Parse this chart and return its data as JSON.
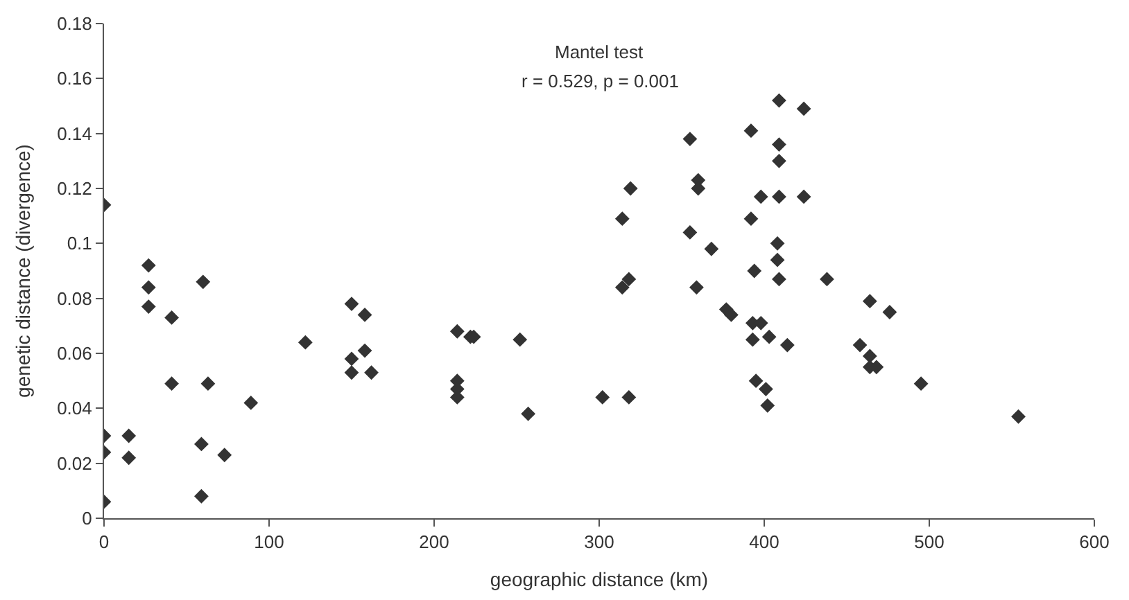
{
  "chart_data": {
    "type": "scatter",
    "xlabel": "geographic distance (km)",
    "ylabel": "genetic distance (divergence)",
    "annotations": [
      "Mantel test",
      "r = 0.529, p = 0.001"
    ],
    "x": [
      0,
      0,
      0,
      0,
      15,
      15,
      27,
      27,
      27,
      41,
      41,
      60,
      63,
      59,
      59,
      73,
      89,
      122,
      150,
      150,
      150,
      158,
      158,
      162,
      214,
      214,
      214,
      214,
      222,
      224,
      252,
      257,
      302,
      318,
      314,
      319,
      314,
      318,
      355,
      360,
      360,
      355,
      368,
      359,
      377,
      380,
      392,
      409,
      424,
      409,
      409,
      398,
      409,
      424,
      392,
      408,
      408,
      409,
      394,
      438,
      393,
      398,
      393,
      403,
      414,
      395,
      401,
      402,
      464,
      476,
      458,
      464,
      464,
      468,
      495,
      554
    ],
    "series": [
      {
        "color": "#333333",
        "values": [
          0.114,
          0.03,
          0.024,
          0.006,
          0.03,
          0.022,
          0.092,
          0.084,
          0.077,
          0.073,
          0.049,
          0.086,
          0.049,
          0.027,
          0.008,
          0.023,
          0.042,
          0.064,
          0.078,
          0.058,
          0.053,
          0.061,
          0.074,
          0.053,
          0.068,
          0.05,
          0.047,
          0.044,
          0.066,
          0.066,
          0.065,
          0.038,
          0.044,
          0.044,
          0.109,
          0.12,
          0.084,
          0.087,
          0.138,
          0.123,
          0.12,
          0.104,
          0.098,
          0.084,
          0.076,
          0.074,
          0.141,
          0.152,
          0.149,
          0.136,
          0.13,
          0.117,
          0.117,
          0.117,
          0.109,
          0.1,
          0.094,
          0.087,
          0.09,
          0.087,
          0.071,
          0.071,
          0.065,
          0.066,
          0.063,
          0.05,
          0.047,
          0.041,
          0.079,
          0.075,
          0.063,
          0.059,
          0.055,
          0.055,
          0.049,
          0.037
        ]
      }
    ],
    "xlim": [
      0,
      600
    ],
    "xticks": [
      0,
      100,
      200,
      300,
      400,
      500,
      600
    ],
    "ylim": [
      0,
      0.18
    ],
    "yticks": [
      0,
      0.02,
      0.04,
      0.06,
      0.08,
      0.1,
      0.12,
      0.14,
      0.16,
      0.18
    ],
    "marker": "diamond",
    "grid": false
  }
}
